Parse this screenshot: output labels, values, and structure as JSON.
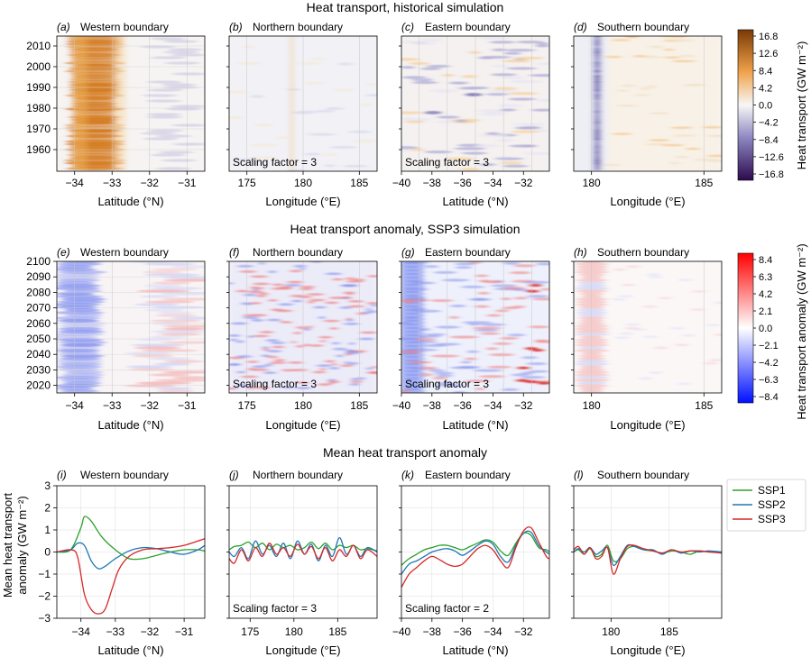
{
  "figure": {
    "row_titles": [
      "Heat transport, historical simulation",
      "Heat transport anomaly, SSP3 simulation",
      "Mean heat transport anomaly"
    ],
    "scaling_prefix": "Scaling factor = "
  },
  "chart_data": [
    {
      "type": "heatmap",
      "title": "Heat transport, historical simulation",
      "colorbar": {
        "label": "Heat transport (GW m⁻²)",
        "ticks": [
          "16.8",
          "12.6",
          "8.4",
          "4.2",
          "0.0",
          "−4.2",
          "−8.4",
          "−12.6",
          "−16.8"
        ],
        "range": [
          -16.8,
          16.8
        ],
        "colors": {
          "high": "#7a3a05",
          "mid_high": "#f0a24a",
          "zero": "#f7f7f7",
          "mid_low": "#8c86c0",
          "low": "#2d0a4e"
        }
      },
      "panels": [
        {
          "id": "(a)",
          "subtitle": "Western boundary",
          "xlabel": "Latitude (°N)",
          "xticks": [
            "−34",
            "−33",
            "−32",
            "−31"
          ],
          "ylim": [
            1951,
            2015
          ],
          "yticks": [
            "2010",
            "2000",
            "1990",
            "1980",
            "1970",
            "1960"
          ],
          "scaling": null,
          "pattern": "strong positive (orange) west of −33.3°N, weak negative near −32°N"
        },
        {
          "id": "(b)",
          "subtitle": "Northern boundary",
          "xlabel": "Longitude (°E)",
          "xticks": [
            "175",
            "180",
            "185"
          ],
          "scaling": "3",
          "pattern": "near-zero, faint orange stripe at 180°E"
        },
        {
          "id": "(c)",
          "subtitle": "Eastern boundary",
          "xlabel": "Latitude (°N)",
          "xticks": [
            "−40",
            "−38",
            "−36",
            "−34",
            "−32"
          ],
          "scaling": "3",
          "pattern": "weak mixed anomalies, purple patches near −36°N to −34°N"
        },
        {
          "id": "(d)",
          "subtitle": "Southern boundary",
          "xlabel": "Longitude (°E)",
          "xticks": [
            "180",
            "185"
          ],
          "scaling": null,
          "pattern": "purple stripe near 178°E, faint orange east of 180°E"
        }
      ]
    },
    {
      "type": "heatmap",
      "title": "Heat transport anomaly, SSP3 simulation",
      "colorbar": {
        "label": "Heat transport anomaly (GW m⁻²)",
        "ticks": [
          "8.4",
          "6.3",
          "4.2",
          "2.1",
          "0.0",
          "−2.1",
          "−4.2",
          "−6.3",
          "−8.4"
        ],
        "range": [
          -8.4,
          8.4
        ],
        "colors": {
          "high": "#ff0000",
          "zero": "#ffffff",
          "low": "#0010ff"
        }
      },
      "panels": [
        {
          "id": "(e)",
          "subtitle": "Western boundary",
          "xlabel": "Latitude (°N)",
          "xticks": [
            "−34",
            "−33",
            "−32",
            "−31"
          ],
          "ylim": [
            2015,
            2100
          ],
          "yticks": [
            "2100",
            "2090",
            "2080",
            "2070",
            "2060",
            "2050",
            "2040",
            "2030",
            "2020"
          ],
          "scaling": null,
          "pattern": "blue west of −33°N, red streaks east of −33°N"
        },
        {
          "id": "(f)",
          "subtitle": "Northern boundary",
          "xlabel": "Longitude (°E)",
          "xticks": [
            "175",
            "180",
            "185"
          ],
          "scaling": "3",
          "pattern": "noisy red/blue blotches"
        },
        {
          "id": "(g)",
          "subtitle": "Eastern boundary",
          "xlabel": "Latitude (°N)",
          "xticks": [
            "−40",
            "−38",
            "−36",
            "−34",
            "−32"
          ],
          "scaling": "3",
          "pattern": "blue at −40°N, red streaks near −31°N"
        },
        {
          "id": "(h)",
          "subtitle": "Southern boundary",
          "xlabel": "Longitude (°E)",
          "xticks": [
            "180",
            "185"
          ],
          "scaling": null,
          "pattern": "faint red streaks west of 180°E"
        }
      ]
    },
    {
      "type": "line",
      "title": "Mean heat transport anomaly",
      "ylabel": "Mean heat transport anomaly (GW m⁻²)",
      "ylim": [
        -3,
        3
      ],
      "yticks": [
        "3",
        "2",
        "1",
        "0",
        "−1",
        "−2",
        "−3"
      ],
      "legend": {
        "placement": "right",
        "entries": [
          "SSP1",
          "SSP2",
          "SSP3"
        ],
        "colors": [
          "#2ca02c",
          "#1f77b4",
          "#d62728"
        ]
      },
      "panels": [
        {
          "id": "(i)",
          "subtitle": "Western boundary",
          "xlabel": "Latitude (°N)",
          "xlim": [
            -34.7,
            -30.4
          ],
          "xticks": [
            -34,
            -33,
            -32,
            -31
          ],
          "xticklabels": [
            "−34",
            "−33",
            "−32",
            "−31"
          ],
          "scaling": null,
          "series": [
            {
              "name": "SSP1",
              "x": [
                -34.7,
                -34.3,
                -34.0,
                -33.9,
                -33.7,
                -33.4,
                -33.0,
                -32.6,
                -32.2,
                -31.8,
                -31.4,
                -31.0,
                -30.6,
                -30.4
              ],
              "y": [
                0,
                0.1,
                1.1,
                1.6,
                1.4,
                0.7,
                0.1,
                -0.3,
                -0.3,
                -0.15,
                0.0,
                0.1,
                0.1,
                0.05
              ]
            },
            {
              "name": "SSP2",
              "x": [
                -34.7,
                -34.3,
                -34.1,
                -33.9,
                -33.7,
                -33.5,
                -33.3,
                -33.0,
                -32.6,
                -32.2,
                -31.8,
                -31.4,
                -31.0,
                -30.6,
                -30.4
              ],
              "y": [
                0,
                0.1,
                0.4,
                0.3,
                -0.4,
                -0.75,
                -0.65,
                -0.3,
                0.05,
                0.2,
                0.15,
                0.0,
                -0.1,
                0.1,
                0.3
              ]
            },
            {
              "name": "SSP3",
              "x": [
                -34.7,
                -34.3,
                -34.1,
                -33.9,
                -33.7,
                -33.5,
                -33.3,
                -33.1,
                -32.9,
                -32.6,
                -32.2,
                -31.8,
                -31.4,
                -31.0,
                -30.6,
                -30.4
              ],
              "y": [
                0,
                0.1,
                -0.2,
                -1.9,
                -2.6,
                -2.8,
                -2.6,
                -1.7,
                -0.8,
                -0.2,
                0.1,
                0.15,
                0.2,
                0.3,
                0.5,
                0.6
              ]
            }
          ]
        },
        {
          "id": "(j)",
          "subtitle": "Northern boundary",
          "xlabel": "Longitude (°E)",
          "xlim": [
            172.6,
            189.5
          ],
          "xticks": [
            175,
            180,
            185
          ],
          "xticklabels": [
            "175",
            "180",
            "185"
          ],
          "scaling": "3",
          "series": [
            {
              "name": "SSP1",
              "x": [
                172.6,
                173.2,
                174.0,
                174.8,
                175.6,
                176.4,
                177.2,
                178.0,
                178.8,
                179.6,
                180.4,
                181.2,
                182.0,
                182.8,
                183.6,
                184.4,
                185.2,
                186.0,
                186.8,
                187.6,
                188.4,
                189.5
              ],
              "y": [
                0.1,
                0.25,
                0.3,
                0.45,
                0.2,
                0.4,
                0.1,
                0.35,
                0.2,
                0.3,
                0.1,
                0.2,
                0.45,
                0.15,
                0.4,
                0.1,
                0.3,
                0.2,
                0.3,
                0.1,
                0.15,
                0.05
              ]
            },
            {
              "name": "SSP2",
              "x": [
                172.6,
                173.2,
                174.0,
                174.8,
                175.6,
                176.4,
                177.2,
                178.0,
                178.8,
                179.6,
                180.4,
                181.2,
                182.0,
                182.8,
                183.6,
                184.4,
                185.2,
                186.0,
                186.8,
                187.6,
                188.4,
                189.5
              ],
              "y": [
                0.0,
                -0.2,
                0.2,
                -0.3,
                0.5,
                -0.1,
                0.3,
                -0.2,
                0.4,
                -0.3,
                0.5,
                -0.1,
                0.35,
                -0.4,
                0.3,
                -0.2,
                0.65,
                -0.1,
                0.3,
                -0.2,
                0.2,
                0.0
              ]
            },
            {
              "name": "SSP3",
              "x": [
                172.6,
                173.2,
                174.0,
                174.8,
                175.6,
                176.4,
                177.2,
                178.0,
                178.8,
                179.6,
                180.4,
                181.2,
                182.0,
                182.8,
                183.6,
                184.4,
                185.2,
                186.0,
                186.8,
                187.6,
                188.4,
                189.5
              ],
              "y": [
                -0.3,
                -0.5,
                0.1,
                -0.4,
                0.2,
                -0.2,
                0.4,
                -0.1,
                0.2,
                -0.2,
                0.35,
                -0.1,
                0.25,
                -0.3,
                0.2,
                -0.4,
                0.1,
                -0.2,
                0.3,
                -0.3,
                0.1,
                -0.2
              ]
            }
          ]
        },
        {
          "id": "(k)",
          "subtitle": "Eastern boundary",
          "xlabel": "Latitude (°N)",
          "xlim": [
            -40,
            -30.3
          ],
          "xticks": [
            -40,
            -38,
            -36,
            -34,
            -32
          ],
          "xticklabels": [
            "−40",
            "−38",
            "−36",
            "−34",
            "−32"
          ],
          "scaling": "2",
          "series": [
            {
              "name": "SSP1",
              "x": [
                -40,
                -39.5,
                -39.0,
                -38.5,
                -38.0,
                -37.5,
                -37.0,
                -36.5,
                -36.0,
                -35.5,
                -35.0,
                -34.5,
                -34.0,
                -33.5,
                -33.0,
                -32.5,
                -32.0,
                -31.5,
                -31.0,
                -30.5,
                -30.3
              ],
              "y": [
                -0.6,
                -0.3,
                -0.1,
                0.1,
                0.2,
                0.3,
                0.3,
                0.2,
                0.1,
                0.25,
                0.4,
                0.55,
                0.45,
                0.05,
                -0.15,
                0.4,
                0.85,
                0.75,
                0.2,
                0.1,
                0.0
              ]
            },
            {
              "name": "SSP2",
              "x": [
                -40,
                -39.5,
                -39.0,
                -38.5,
                -38.0,
                -37.5,
                -37.0,
                -36.5,
                -36.0,
                -35.5,
                -35.0,
                -34.5,
                -34.0,
                -33.5,
                -33.0,
                -32.5,
                -32.0,
                -31.5,
                -31.0,
                -30.5,
                -30.3
              ],
              "y": [
                -1.0,
                -0.55,
                -0.4,
                -0.2,
                0.0,
                0.1,
                0.15,
                0.05,
                -0.15,
                0.05,
                0.3,
                0.5,
                0.35,
                -0.2,
                -0.45,
                0.3,
                0.85,
                0.9,
                0.3,
                0.0,
                -0.1
              ]
            },
            {
              "name": "SSP3",
              "x": [
                -40,
                -39.5,
                -39.0,
                -38.5,
                -38.0,
                -37.5,
                -37.0,
                -36.5,
                -36.0,
                -35.5,
                -35.0,
                -34.5,
                -34.0,
                -33.5,
                -33.0,
                -32.5,
                -32.0,
                -31.5,
                -31.0,
                -30.5,
                -30.3
              ],
              "y": [
                -1.6,
                -1.0,
                -0.7,
                -0.4,
                -0.2,
                -0.35,
                -0.55,
                -0.65,
                -0.55,
                -0.2,
                0.15,
                0.3,
                0.1,
                -0.4,
                -0.7,
                0.2,
                0.95,
                1.1,
                0.45,
                -0.2,
                -0.3
              ]
            }
          ]
        },
        {
          "id": "(l)",
          "subtitle": "Southern boundary",
          "xlabel": "Longitude (°E)",
          "xlim": [
            176.8,
            189.5
          ],
          "xticks": [
            180,
            185
          ],
          "xticklabels": [
            "180",
            "185"
          ],
          "scaling": null,
          "series": [
            {
              "name": "SSP1",
              "x": [
                176.8,
                177.2,
                177.7,
                178.2,
                178.7,
                179.2,
                179.7,
                180.2,
                180.8,
                181.4,
                182.0,
                182.8,
                183.6,
                184.4,
                185.2,
                186.0,
                186.8,
                187.6,
                188.4,
                189.5
              ],
              "y": [
                0.0,
                0.1,
                -0.1,
                0.15,
                -0.2,
                -0.1,
                0.3,
                -0.4,
                -0.3,
                0.15,
                0.25,
                0.1,
                0.05,
                -0.05,
                0.05,
                0.0,
                -0.1,
                0.05,
                0.0,
                0.0
              ]
            },
            {
              "name": "SSP2",
              "x": [
                176.8,
                177.2,
                177.7,
                178.2,
                178.7,
                179.2,
                179.7,
                180.2,
                180.8,
                181.4,
                182.0,
                182.8,
                183.6,
                184.4,
                185.2,
                186.0,
                186.8,
                187.6,
                188.4,
                189.5
              ],
              "y": [
                0.0,
                0.15,
                0.0,
                0.2,
                -0.1,
                0.05,
                0.2,
                -0.6,
                -0.2,
                0.3,
                0.25,
                0.1,
                0.1,
                -0.1,
                0.1,
                -0.05,
                0.05,
                0.0,
                0.05,
                0.0
              ]
            },
            {
              "name": "SSP3",
              "x": [
                176.8,
                177.2,
                177.7,
                178.2,
                178.7,
                179.2,
                179.7,
                180.2,
                180.8,
                181.4,
                182.0,
                182.8,
                183.6,
                184.4,
                185.2,
                186.0,
                186.8,
                187.6,
                188.4,
                189.5
              ],
              "y": [
                0.1,
                0.25,
                -0.1,
                0.2,
                -0.3,
                -0.2,
                0.2,
                -1.0,
                -0.3,
                0.25,
                0.3,
                0.15,
                0.05,
                -0.05,
                0.1,
                0.0,
                0.05,
                0.05,
                0.0,
                -0.05
              ]
            }
          ]
        }
      ]
    }
  ]
}
